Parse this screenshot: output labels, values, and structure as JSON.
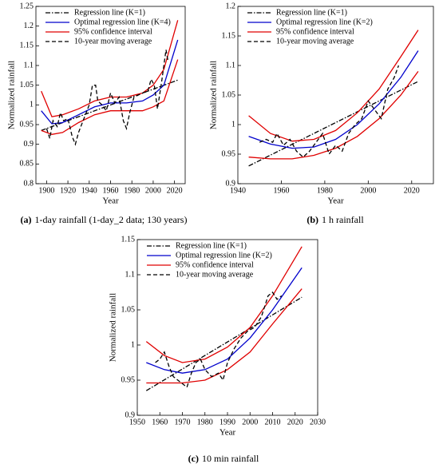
{
  "chart_data": [
    {
      "type": "line",
      "label": "(a)",
      "caption": "1-day rainfall (1-day_2 data; 130 years)",
      "x_label": "Year",
      "y_label": "Normalized rainfall",
      "legend": "upper left",
      "xlim": [
        1890,
        2030
      ],
      "xticks": [
        1900,
        1920,
        1940,
        1960,
        1980,
        2000,
        2020
      ],
      "ylim": [
        0.8,
        1.25
      ],
      "yticks": [
        0.8,
        0.85,
        0.9,
        0.95,
        1,
        1.05,
        1.1,
        1.15,
        1.2,
        1.25
      ],
      "series": [
        {
          "name": "Regression line (K=1)",
          "color": "#000000",
          "style": "dashdot",
          "x": [
            1895,
            2023
          ],
          "values": [
            0.935,
            1.063
          ]
        },
        {
          "name": "Optimal regression line (K=4)",
          "color": "#0000cc",
          "style": "solid",
          "x": [
            1895,
            1905,
            1915,
            1930,
            1945,
            1960,
            1975,
            1990,
            2000,
            2010,
            2023
          ],
          "values": [
            0.985,
            0.952,
            0.955,
            0.975,
            0.995,
            1.005,
            1.005,
            1.01,
            1.025,
            1.05,
            1.165
          ]
        },
        {
          "name": "95% confidence interval",
          "color": "#e00000",
          "style": "solid",
          "x": [
            1895,
            1905,
            1915,
            1930,
            1945,
            1960,
            1975,
            1990,
            2000,
            2010,
            2023
          ],
          "upper": [
            1.035,
            0.97,
            0.975,
            0.99,
            1.01,
            1.02,
            1.02,
            1.03,
            1.05,
            1.09,
            1.215
          ],
          "lower": [
            0.935,
            0.925,
            0.93,
            0.955,
            0.975,
            0.985,
            0.985,
            0.985,
            0.995,
            1.01,
            1.115
          ]
        },
        {
          "name": "10-year moving average",
          "color": "#000000",
          "style": "dashed",
          "x": [
            1900,
            1903,
            1906,
            1910,
            1913,
            1916,
            1920,
            1924,
            1927,
            1930,
            1935,
            1940,
            1943,
            1946,
            1948,
            1952,
            1956,
            1960,
            1964,
            1968,
            1972,
            1975,
            1978,
            1982,
            1986,
            1990,
            1995,
            1998,
            2001,
            2004,
            2008,
            2012,
            2014
          ],
          "values": [
            0.94,
            0.915,
            0.96,
            0.945,
            0.98,
            0.96,
            0.965,
            0.92,
            0.9,
            0.93,
            0.965,
            1.0,
            1.05,
            1.05,
            1.01,
            1.0,
            0.985,
            1.03,
            1.005,
            1.02,
            0.96,
            0.94,
            0.98,
            1.02,
            1.025,
            1.03,
            1.035,
            1.065,
            1.05,
            0.99,
            1.06,
            1.14,
            1.11
          ]
        }
      ]
    },
    {
      "type": "line",
      "label": "(b)",
      "caption": "1 h rainfall",
      "x_label": "Year",
      "y_label": "Normalized rainfall",
      "legend": "upper left",
      "xlim": [
        1940,
        2030
      ],
      "xticks": [
        1940,
        1960,
        1980,
        2000,
        2020
      ],
      "ylim": [
        0.9,
        1.2
      ],
      "yticks": [
        0.9,
        0.95,
        1,
        1.05,
        1.1,
        1.15,
        1.2
      ],
      "series": [
        {
          "name": "Regression line (K=1)",
          "color": "#000000",
          "style": "dashdot",
          "x": [
            1945,
            2023
          ],
          "values": [
            0.93,
            1.073
          ]
        },
        {
          "name": "Optimal regression line (K=2)",
          "color": "#0000cc",
          "style": "solid",
          "x": [
            1945,
            1955,
            1965,
            1975,
            1985,
            1995,
            2005,
            2015,
            2023
          ],
          "values": [
            0.98,
            0.967,
            0.96,
            0.962,
            0.975,
            1.0,
            1.035,
            1.08,
            1.125
          ]
        },
        {
          "name": "95% confidence interval",
          "color": "#e00000",
          "style": "solid",
          "x": [
            1945,
            1955,
            1965,
            1975,
            1985,
            1995,
            2005,
            2015,
            2023
          ],
          "upper": [
            1.015,
            0.985,
            0.972,
            0.975,
            0.99,
            1.02,
            1.06,
            1.115,
            1.16
          ],
          "lower": [
            0.945,
            0.942,
            0.942,
            0.948,
            0.96,
            0.98,
            1.01,
            1.05,
            1.09
          ]
        },
        {
          "name": "10-year moving average",
          "color": "#000000",
          "style": "dashed",
          "x": [
            1950,
            1953,
            1956,
            1958,
            1961,
            1964,
            1967,
            1970,
            1973,
            1976,
            1979,
            1982,
            1985,
            1988,
            1991,
            1994,
            1997,
            2000,
            2003,
            2006,
            2009,
            2012,
            2014
          ],
          "values": [
            0.97,
            0.975,
            0.97,
            0.985,
            0.965,
            0.975,
            0.955,
            0.945,
            0.955,
            0.97,
            0.985,
            0.95,
            0.965,
            0.955,
            0.985,
            1.0,
            1.01,
            1.04,
            1.025,
            1.01,
            1.06,
            1.08,
            1.1
          ]
        }
      ]
    },
    {
      "type": "line",
      "label": "(c)",
      "caption": "10 min rainfall",
      "x_label": "Year",
      "y_label": "Normalized rainfall",
      "legend": "upper left",
      "xlim": [
        1950,
        2030
      ],
      "xticks": [
        1950,
        1960,
        1970,
        1980,
        1990,
        2000,
        2010,
        2020,
        2030
      ],
      "ylim": [
        0.9,
        1.15
      ],
      "yticks": [
        0.9,
        0.95,
        1,
        1.05,
        1.1,
        1.15
      ],
      "series": [
        {
          "name": "Regression line (K=1)",
          "color": "#000000",
          "style": "dashdot",
          "x": [
            1954,
            2023
          ],
          "values": [
            0.935,
            1.068
          ]
        },
        {
          "name": "Optimal regression line (K=2)",
          "color": "#0000cc",
          "style": "solid",
          "x": [
            1954,
            1962,
            1970,
            1980,
            1990,
            2000,
            2010,
            2023
          ],
          "values": [
            0.975,
            0.965,
            0.96,
            0.965,
            0.98,
            1.01,
            1.05,
            1.11
          ]
        },
        {
          "name": "95% confidence interval",
          "color": "#e00000",
          "style": "solid",
          "x": [
            1954,
            1962,
            1970,
            1980,
            1990,
            2000,
            2010,
            2023
          ],
          "upper": [
            1.005,
            0.985,
            0.975,
            0.98,
            0.997,
            1.025,
            1.07,
            1.14
          ],
          "lower": [
            0.946,
            0.946,
            0.946,
            0.95,
            0.965,
            0.99,
            1.03,
            1.08
          ]
        },
        {
          "name": "10-year moving average",
          "color": "#000000",
          "style": "dashed",
          "x": [
            1958,
            1960,
            1962,
            1964,
            1966,
            1968,
            1970,
            1972,
            1974,
            1976,
            1978,
            1980,
            1983,
            1986,
            1988,
            1990,
            1993,
            1996,
            1999,
            2002,
            2005,
            2008,
            2010,
            2012,
            2014
          ],
          "values": [
            0.975,
            0.98,
            0.99,
            0.97,
            0.955,
            0.95,
            0.945,
            0.94,
            0.96,
            0.975,
            0.98,
            0.965,
            0.955,
            0.96,
            0.95,
            0.975,
            0.995,
            1.01,
            1.02,
            1.025,
            1.04,
            1.07,
            1.075,
            1.065,
            1.07
          ]
        }
      ]
    }
  ]
}
